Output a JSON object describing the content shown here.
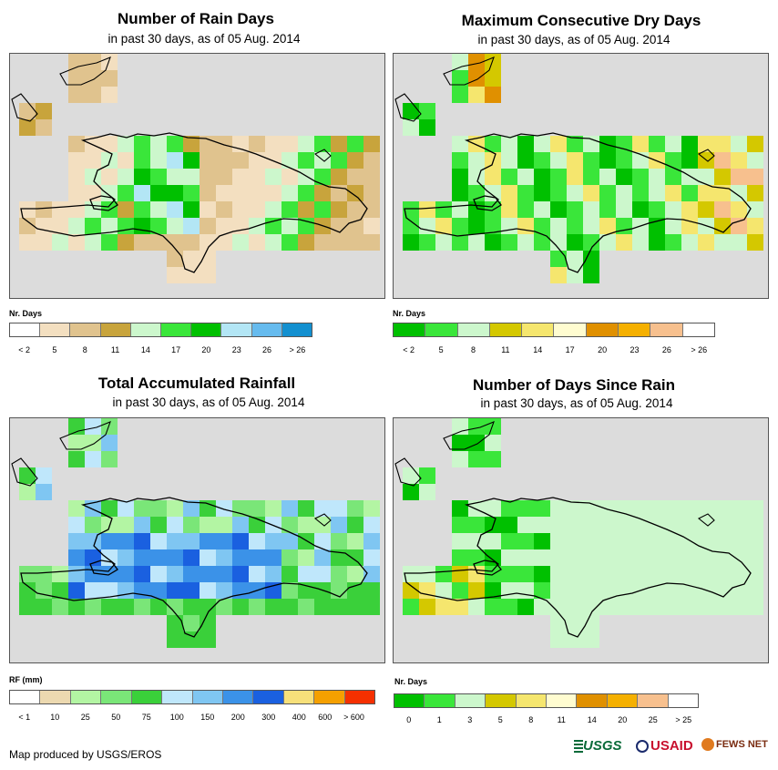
{
  "panels": [
    {
      "title": "Number of Rain Days",
      "subtitle": "in past 30 days, as of 05 Aug. 2014",
      "legend_title": "Nr. Days",
      "legend_colors": [
        "#ffffff",
        "#f3dfc0",
        "#e0c38e",
        "#c8a43c",
        "#ccf7cc",
        "#3ae63a",
        "#00c000",
        "#b3e6f5",
        "#66bbee",
        "#1390d0"
      ],
      "legend_labels": [
        "< 2",
        "5",
        "8",
        "11",
        "14",
        "17",
        "20",
        "23",
        "26",
        "> 26"
      ]
    },
    {
      "title": "Maximum Consecutive Dry Days",
      "subtitle": "in past 30 days, as of 05 Aug. 2014",
      "legend_title": "Nr. Days",
      "legend_colors": [
        "#00c000",
        "#3ae63a",
        "#ccf7cc",
        "#d4c800",
        "#f5e66e",
        "#fffcd0",
        "#e09000",
        "#f5b000",
        "#f7c08e",
        "#ffffff"
      ],
      "legend_labels": [
        "< 2",
        "5",
        "8",
        "11",
        "14",
        "17",
        "20",
        "23",
        "26",
        "> 26"
      ]
    },
    {
      "title": "Total Accumulated Rainfall",
      "subtitle": "in past 30 days, as of 05 Aug. 2014",
      "legend_title": "RF (mm)",
      "legend_colors": [
        "#ffffff",
        "#ecd9b0",
        "#b3f5a3",
        "#7ae678",
        "#3ad03a",
        "#bfe7fb",
        "#7fc6f2",
        "#3b92e8",
        "#1a60e0",
        "#f7e07a",
        "#f5a000",
        "#f53000"
      ],
      "legend_labels": [
        "< 1",
        "10",
        "25",
        "50",
        "75",
        "100",
        "150",
        "200",
        "300",
        "400",
        "600",
        "> 600"
      ]
    },
    {
      "title": "Number of Days Since Rain",
      "subtitle": "in past 30 days, as of 05 Aug. 2014",
      "legend_title": "Nr. Days",
      "legend_colors": [
        "#00c000",
        "#3ae63a",
        "#ccf7cc",
        "#d4c800",
        "#f5e66e",
        "#fffcd0",
        "#e09000",
        "#f5b000",
        "#f7c08e",
        "#ffffff"
      ],
      "legend_labels": [
        "0",
        "1",
        "3",
        "5",
        "8",
        "11",
        "14",
        "20",
        "25",
        "> 25"
      ]
    }
  ],
  "footer": "Map produced by USGS/EROS",
  "logos": {
    "usgs": "USGS",
    "usaid": "USAID",
    "fews": "FEWS NET"
  }
}
